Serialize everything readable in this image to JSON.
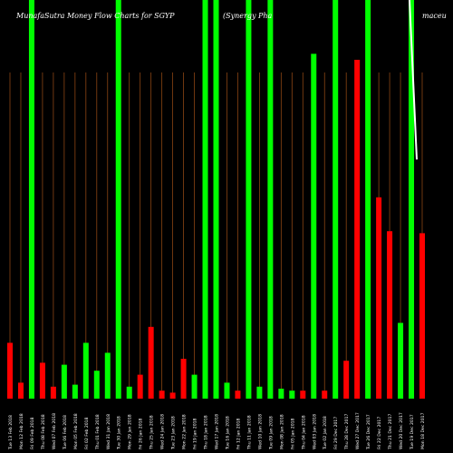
{
  "chart_data": {
    "type": "bar",
    "title_parts": [
      "MunafaSutra  Money Flow  Charts for SGYP",
      "(Synergy Pha",
      "maceu"
    ],
    "xlabel": "",
    "ylabel": "",
    "ylim": [
      0,
      100
    ],
    "grid": true,
    "colors": {
      "up": "#00ff00",
      "down": "#ff0000",
      "grid": "#8b4513",
      "background": "#000000",
      "line": "#ffffff"
    },
    "line_series": [
      {
        "x": 0.0,
        "y": 100
      },
      {
        "x": 0.4,
        "y": 60
      }
    ],
    "bars": [
      {
        "label": "Tue 13 Feb 2018",
        "value": 14,
        "dir": "down"
      },
      {
        "label": "Mon 12 Feb 2018",
        "value": 4,
        "dir": "down"
      },
      {
        "label": "Fri 09 Feb 2018",
        "value": 100,
        "dir": "up"
      },
      {
        "label": "Thu 08 Feb 2018",
        "value": 9,
        "dir": "down"
      },
      {
        "label": "Wed 07 Feb 2018",
        "value": 3,
        "dir": "down"
      },
      {
        "label": "Tue 06 Feb 2018",
        "value": 8.5,
        "dir": "up"
      },
      {
        "label": "Mon 05 Feb 2018",
        "value": 3.5,
        "dir": "up"
      },
      {
        "label": "Fri 02 Feb 2018",
        "value": 14,
        "dir": "up"
      },
      {
        "label": "Thu 01 Feb 2018",
        "value": 7,
        "dir": "up"
      },
      {
        "label": "Wed 31 Jan 2018",
        "value": 11.5,
        "dir": "up"
      },
      {
        "label": "Tue 30 Jan 2018",
        "value": 100,
        "dir": "up"
      },
      {
        "label": "Mon 29 Jan 2018",
        "value": 3,
        "dir": "up"
      },
      {
        "label": "Fri 26 Jan 2018",
        "value": 6,
        "dir": "down"
      },
      {
        "label": "Thu 25 Jan 2018",
        "value": 18,
        "dir": "down"
      },
      {
        "label": "Wed 24 Jan 2018",
        "value": 2,
        "dir": "down"
      },
      {
        "label": "Tue 23 Jan 2018",
        "value": 1.5,
        "dir": "down"
      },
      {
        "label": "Mon 22 Jan 2018",
        "value": 10,
        "dir": "down"
      },
      {
        "label": "Fri 19 Jan 2018",
        "value": 6,
        "dir": "up"
      },
      {
        "label": "Thu 18 Jan 2018",
        "value": 100,
        "dir": "up"
      },
      {
        "label": "Wed 17 Jan 2018",
        "value": 100,
        "dir": "up"
      },
      {
        "label": "Tue 16 Jan 2018",
        "value": 4,
        "dir": "up"
      },
      {
        "label": "Fri 12 Jan 2018",
        "value": 2,
        "dir": "down"
      },
      {
        "label": "Thu 11 Jan 2018",
        "value": 100,
        "dir": "up"
      },
      {
        "label": "Wed 10 Jan 2018",
        "value": 3,
        "dir": "up"
      },
      {
        "label": "Tue 09 Jan 2018",
        "value": 100,
        "dir": "up"
      },
      {
        "label": "Mon 08 Jan 2018",
        "value": 2.5,
        "dir": "up"
      },
      {
        "label": "Fri 05 Jan 2018",
        "value": 2,
        "dir": "up"
      },
      {
        "label": "Thu 04 Jan 2018",
        "value": 2,
        "dir": "down"
      },
      {
        "label": "Wed 03 Jan 2018",
        "value": 86.5,
        "dir": "up"
      },
      {
        "label": "Tue 02 Jan 2018",
        "value": 2,
        "dir": "down"
      },
      {
        "label": "Fri 29 Dec 2017",
        "value": 100,
        "dir": "up"
      },
      {
        "label": "Thu 28 Dec 2017",
        "value": 9.5,
        "dir": "down"
      },
      {
        "label": "Wed 27 Dec 2017",
        "value": 85,
        "dir": "down"
      },
      {
        "label": "Tue 26 Dec 2017",
        "value": 100,
        "dir": "up"
      },
      {
        "label": "Fri 22 Dec 2017",
        "value": 50.5,
        "dir": "down"
      },
      {
        "label": "Thu 21 Dec 2017",
        "value": 42,
        "dir": "down"
      },
      {
        "label": "Wed 20 Dec 2017",
        "value": 19,
        "dir": "up"
      },
      {
        "label": "Tue 19 Dec 2017",
        "value": 100,
        "dir": "up"
      },
      {
        "label": "Mon 18 Dec 2017",
        "value": 41.5,
        "dir": "down"
      }
    ]
  }
}
